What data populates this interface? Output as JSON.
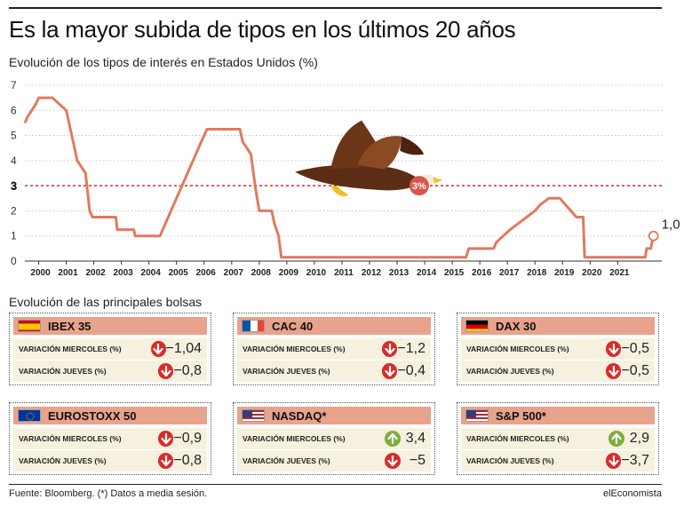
{
  "header": {
    "title": "Es la mayor subida de tipos en los últimos 20 años",
    "subtitle": "Evolución de los tipos de interés en Estados Unidos (%)"
  },
  "chart_data": {
    "type": "line",
    "title": "Evolución de los tipos de interés en Estados Unidos (%)",
    "x_ticks": [
      "2000",
      "2001",
      "2002",
      "2003",
      "2004",
      "2005",
      "2006",
      "2007",
      "2008",
      "2009",
      "2010",
      "2011",
      "2012",
      "2013",
      "2014",
      "2015",
      "2016",
      "2017",
      "2018",
      "2019",
      "2020",
      "2021"
    ],
    "y_ticks": [
      "0",
      "1",
      "2",
      "3",
      "4",
      "5",
      "6",
      "7"
    ],
    "ylim": [
      0,
      7
    ],
    "xlim": [
      1999.5,
      2022.6
    ],
    "line_color": "#e07a5f",
    "series": [
      {
        "points": [
          [
            1999.5,
            5.5
          ],
          [
            1999.6,
            5.75
          ],
          [
            1999.75,
            6.0
          ],
          [
            1999.9,
            6.25
          ],
          [
            2000.0,
            6.5
          ],
          [
            2000.5,
            6.5
          ],
          [
            2001.0,
            6.0
          ],
          [
            2001.1,
            5.5
          ],
          [
            2001.2,
            5.0
          ],
          [
            2001.3,
            4.5
          ],
          [
            2001.4,
            4.0
          ],
          [
            2001.55,
            3.75
          ],
          [
            2001.7,
            3.5
          ],
          [
            2001.75,
            3.0
          ],
          [
            2001.8,
            2.5
          ],
          [
            2001.85,
            2.0
          ],
          [
            2001.95,
            1.75
          ],
          [
            2002.8,
            1.75
          ],
          [
            2002.85,
            1.25
          ],
          [
            2003.45,
            1.25
          ],
          [
            2003.5,
            1.0
          ],
          [
            2004.4,
            1.0
          ],
          [
            2004.5,
            1.25
          ],
          [
            2004.6,
            1.5
          ],
          [
            2004.7,
            1.75
          ],
          [
            2004.8,
            2.0
          ],
          [
            2004.9,
            2.25
          ],
          [
            2005.0,
            2.5
          ],
          [
            2005.1,
            2.75
          ],
          [
            2005.2,
            3.0
          ],
          [
            2005.3,
            3.25
          ],
          [
            2005.4,
            3.5
          ],
          [
            2005.5,
            3.75
          ],
          [
            2005.6,
            4.0
          ],
          [
            2005.7,
            4.25
          ],
          [
            2005.8,
            4.5
          ],
          [
            2005.9,
            4.75
          ],
          [
            2006.0,
            5.0
          ],
          [
            2006.1,
            5.25
          ],
          [
            2007.3,
            5.25
          ],
          [
            2007.4,
            4.75
          ],
          [
            2007.55,
            4.5
          ],
          [
            2007.7,
            4.25
          ],
          [
            2007.85,
            3.0
          ],
          [
            2008.0,
            2.0
          ],
          [
            2008.45,
            2.0
          ],
          [
            2008.55,
            1.5
          ],
          [
            2008.7,
            1.0
          ],
          [
            2008.8,
            0.15
          ],
          [
            2015.5,
            0.15
          ],
          [
            2015.6,
            0.5
          ],
          [
            2016.5,
            0.5
          ],
          [
            2016.6,
            0.75
          ],
          [
            2016.85,
            1.0
          ],
          [
            2017.1,
            1.25
          ],
          [
            2017.4,
            1.5
          ],
          [
            2017.7,
            1.75
          ],
          [
            2018.0,
            2.0
          ],
          [
            2018.2,
            2.25
          ],
          [
            2018.5,
            2.5
          ],
          [
            2018.9,
            2.5
          ],
          [
            2019.1,
            2.25
          ],
          [
            2019.3,
            2.0
          ],
          [
            2019.5,
            1.75
          ],
          [
            2019.75,
            1.75
          ],
          [
            2019.8,
            0.15
          ],
          [
            2022.0,
            0.15
          ],
          [
            2022.05,
            0.5
          ],
          [
            2022.2,
            0.5
          ],
          [
            2022.3,
            1.0
          ]
        ]
      }
    ],
    "reference_line": {
      "value": 3,
      "label": "3",
      "color": "#c9302c"
    },
    "callouts": [
      {
        "label": "3%",
        "year": 2013.8,
        "value": 3
      },
      {
        "label": "1,0",
        "year": 2022.3,
        "value": 1.0
      }
    ],
    "grid": true,
    "illustration": "eagle-icon"
  },
  "indices_section": {
    "title": "Evolución de las principales bolsas",
    "row_label_1": "VARIACIÓN MIERCOLES (%)",
    "row_label_2": "VARIACIÓN JUEVES (%)",
    "cards": [
      {
        "name": "IBEX 35",
        "flag": "spain-flag",
        "v1": "−1,04",
        "d1": "down",
        "v2": "−0,8",
        "d2": "down"
      },
      {
        "name": "CAC 40",
        "flag": "france-flag",
        "v1": "−1,2",
        "d1": "down",
        "v2": "−0,4",
        "d2": "down"
      },
      {
        "name": "DAX 30",
        "flag": "germany-flag",
        "v1": "−0,5",
        "d1": "down",
        "v2": "−0,5",
        "d2": "down"
      },
      {
        "name": "EUROSTOXX 50",
        "flag": "eu-flag",
        "v1": "−0,9",
        "d1": "down",
        "v2": "−0,8",
        "d2": "down"
      },
      {
        "name": "NASDAQ*",
        "flag": "usa-flag",
        "v1": "3,4",
        "d1": "up",
        "v2": "−5",
        "d2": "down"
      },
      {
        "name": "S&P 500*",
        "flag": "usa-flag",
        "v1": "2,9",
        "d1": "up",
        "v2": "−3,7",
        "d2": "down"
      }
    ]
  },
  "footer": {
    "source": "Fuente: Bloomberg. (*) Datos a media sesión.",
    "brand": "elEconomista"
  },
  "colors": {
    "accent": "#e07a5f",
    "card_header": "#e8a38c",
    "row_bg": "#f6f1df",
    "down": "#d92b2b",
    "up": "#7cae3c"
  }
}
